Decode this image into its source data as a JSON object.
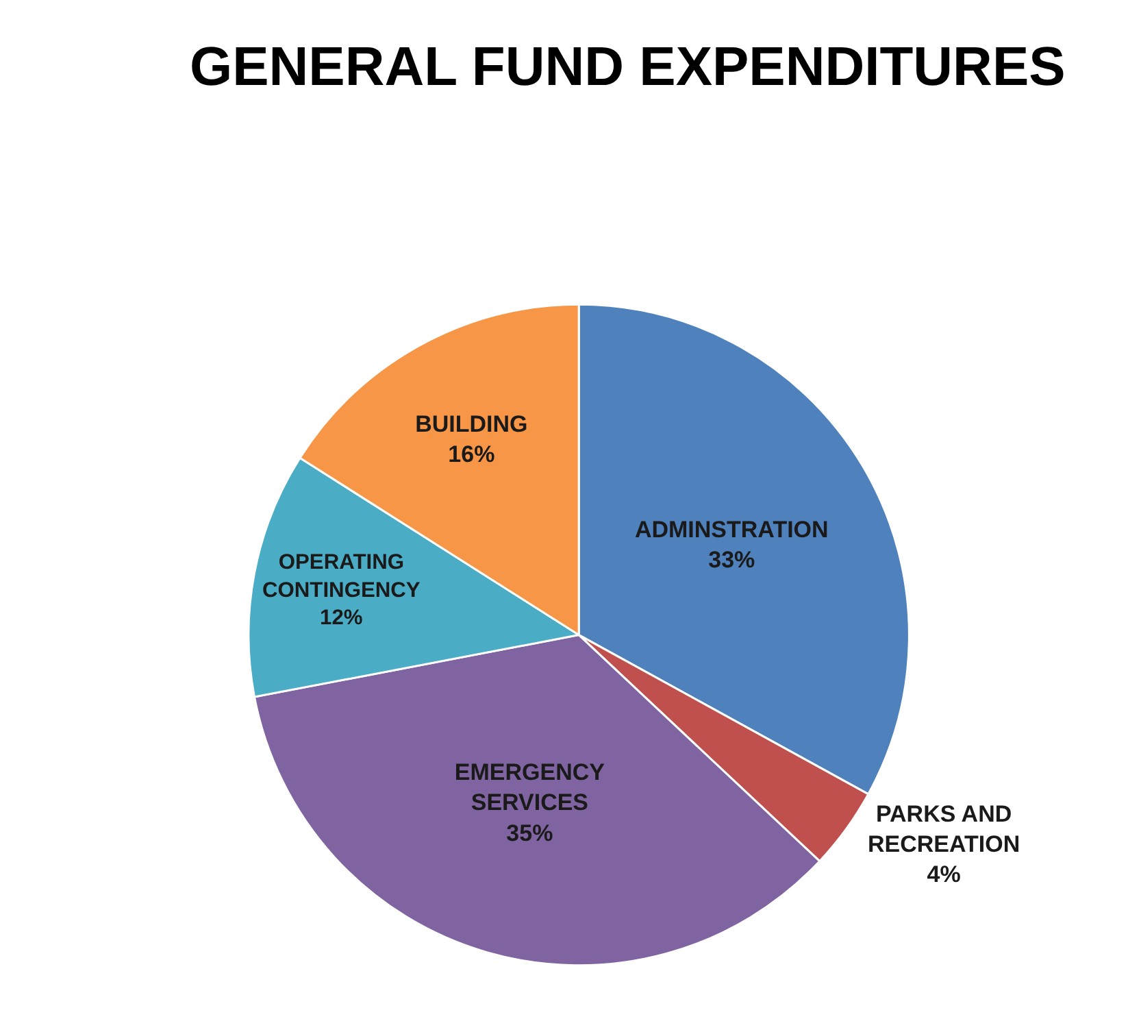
{
  "chart_data": {
    "type": "pie",
    "title": "GENERAL FUND EXPENDITURES",
    "categories": [
      "ADMINSTRATION",
      "PARKS AND RECREATION",
      "EMERGENCY SERVICES",
      "OPERATING CONTINGENCY",
      "BUILDING"
    ],
    "values": [
      33,
      4,
      35,
      12,
      16
    ],
    "value_labels": [
      "33%",
      "4%",
      "35%",
      "12%",
      "16%"
    ],
    "colors": [
      "#4f81bd",
      "#c0504d",
      "#8064a2",
      "#4bacc6",
      "#f79646"
    ],
    "legend": false
  }
}
